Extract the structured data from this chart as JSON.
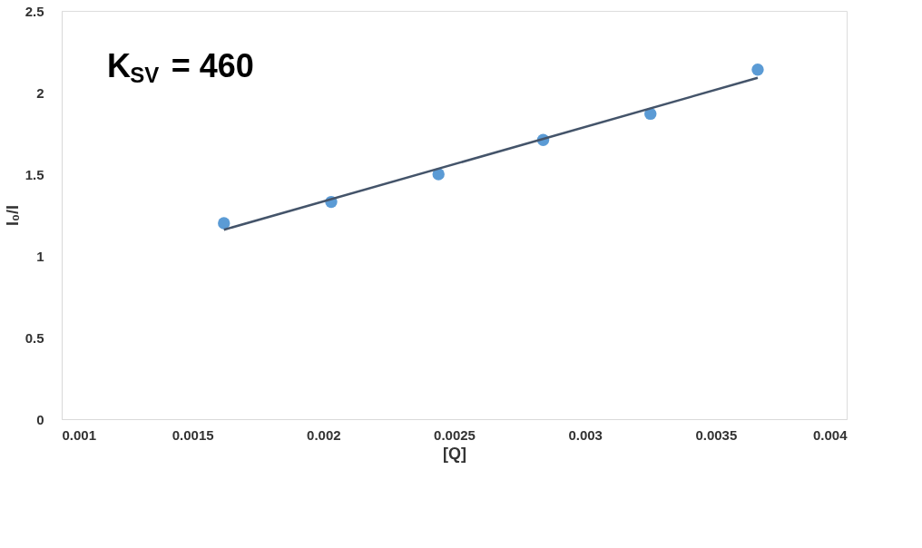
{
  "chart_data": {
    "type": "scatter",
    "xlabel": "[Q]",
    "ylabel": "I₀/I",
    "annotations": [
      "K$_{SV}$ = 460"
    ],
    "xlim": [
      0.001,
      0.004
    ],
    "xticks": [
      0.001,
      0.0015,
      0.002,
      0.0025,
      0.003,
      0.0035,
      0.004
    ],
    "ylim": [
      0,
      2.5
    ],
    "yticks": [
      0,
      0.5,
      1,
      1.5,
      2,
      2.5
    ],
    "grid": false,
    "series": [
      {
        "marker": "circle",
        "color": "#5b9bd5",
        "x": [
          0.00162,
          0.00203,
          0.00244,
          0.00284,
          0.00325,
          0.00366
        ],
        "values": [
          1.2,
          1.33,
          1.5,
          1.71,
          1.87,
          2.14
        ]
      },
      {
        "type": "line",
        "marker": "none",
        "color": "#44546a",
        "line_style": "solid",
        "x": [
          0.00162,
          0.00366
        ],
        "values": [
          1.16,
          2.09
        ]
      }
    ]
  }
}
